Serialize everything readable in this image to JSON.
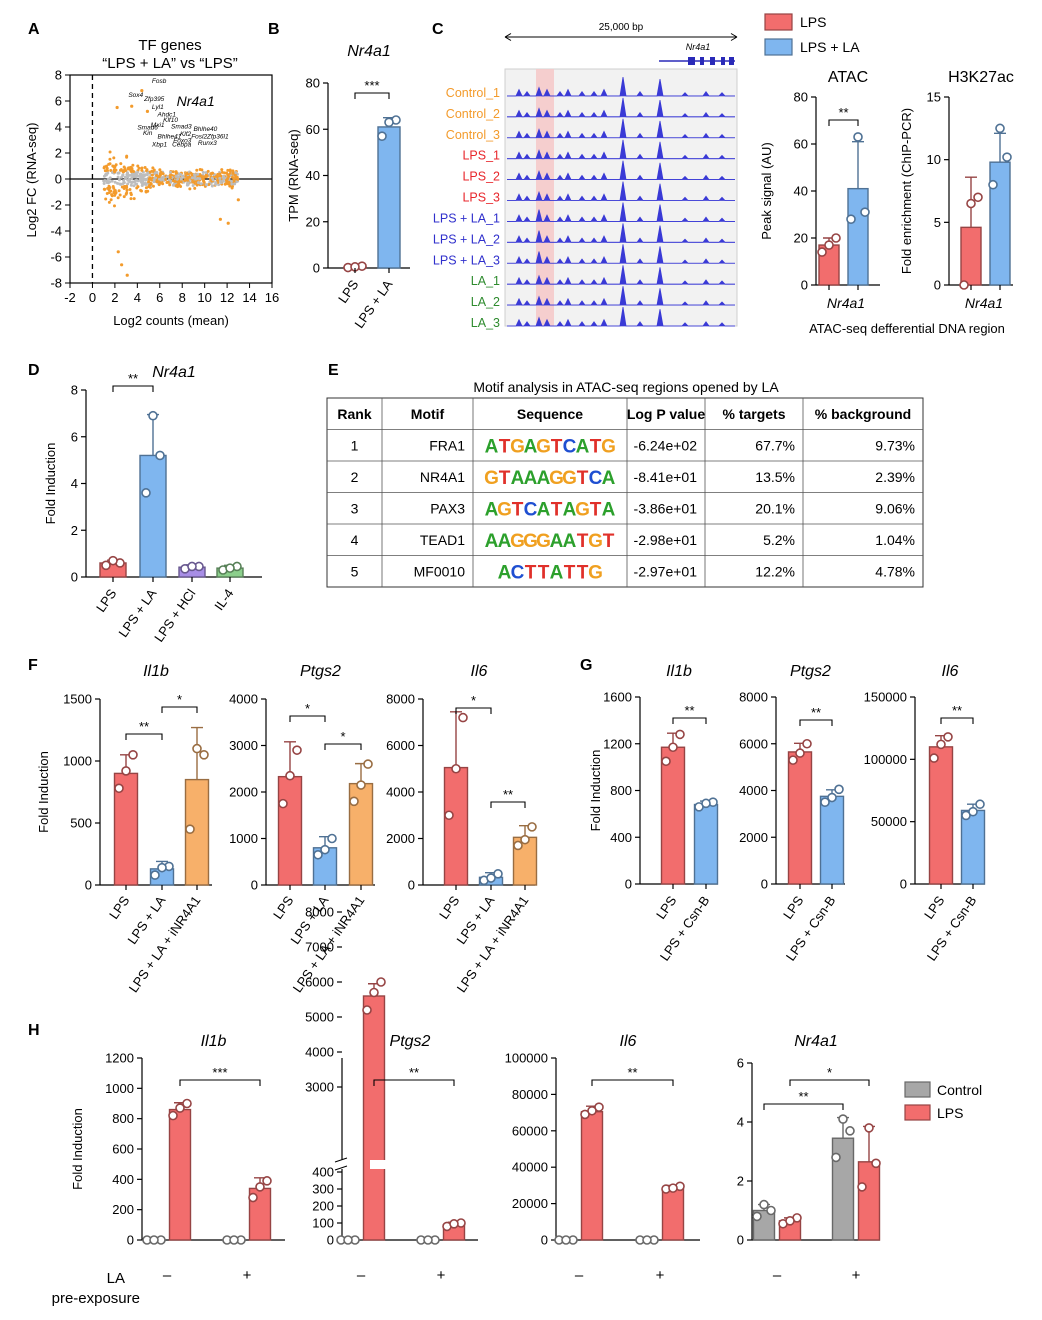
{
  "panel_letters": [
    "A",
    "B",
    "C",
    "D",
    "E",
    "F",
    "G",
    "H"
  ],
  "colors": {
    "lps": "#f26d6d",
    "la": "#7fb6ef",
    "grey": "#a7a7a7",
    "orange": "#f7b06a",
    "purple": "#a88ee6",
    "green": "#8ccf8c",
    "peak": "#3a3ad6",
    "scatter_orange": "#f39b2c",
    "scatter_grey": "#bdbdbd",
    "shade": "#f6c8c8"
  },
  "chart_data": [
    {
      "panel": "A",
      "type": "scatter",
      "title": "TF genes\n“LPS + LA” vs “LPS”",
      "xlabel": "Log2 counts (mean)",
      "ylabel": "Log2 FC (RNA-seq)",
      "xlim": [
        -2,
        16
      ],
      "ylim": [
        -8,
        8
      ],
      "xticks": [
        -2,
        0,
        2,
        4,
        6,
        8,
        10,
        12,
        14,
        16
      ],
      "yticks": [
        -8,
        -6,
        -4,
        -2,
        0,
        2,
        4,
        6,
        8
      ],
      "highlight_label": "Nr4a1",
      "gene_labels": [
        {
          "t": "Fosb",
          "x": 5.3,
          "y": 7.4
        },
        {
          "t": "Sox4",
          "x": 3.2,
          "y": 6.3
        },
        {
          "t": "Zfp395",
          "x": 4.6,
          "y": 6.0
        },
        {
          "t": "Lyl1",
          "x": 5.3,
          "y": 5.4
        },
        {
          "t": "Ahdc1",
          "x": 5.8,
          "y": 4.8
        },
        {
          "t": "Klf10",
          "x": 6.3,
          "y": 4.4
        },
        {
          "t": "Mxi1",
          "x": 5.2,
          "y": 4.0
        },
        {
          "t": "Smad6",
          "x": 4.0,
          "y": 3.8
        },
        {
          "t": "Smad3",
          "x": 7.0,
          "y": 3.9
        },
        {
          "t": "Bhlhe40",
          "x": 9.0,
          "y": 3.7
        },
        {
          "t": "Klf2",
          "x": 7.8,
          "y": 3.3
        },
        {
          "t": "Fosl2",
          "x": 8.8,
          "y": 3.1
        },
        {
          "t": "Zfp36l1",
          "x": 10.2,
          "y": 3.1
        },
        {
          "t": "Bhlhe41",
          "x": 5.8,
          "y": 3.1
        },
        {
          "t": "Foxo3",
          "x": 7.2,
          "y": 2.8
        },
        {
          "t": "Runx3",
          "x": 9.4,
          "y": 2.6
        },
        {
          "t": "Xbp1",
          "x": 5.3,
          "y": 2.5
        },
        {
          "t": "Cebpa",
          "x": 7.1,
          "y": 2.5
        },
        {
          "t": "Kin",
          "x": 4.5,
          "y": 3.4
        }
      ]
    },
    {
      "panel": "B",
      "type": "bar",
      "title": "Nr4a1",
      "ylabel": "TPM (RNA-seq)",
      "categories": [
        "LPS",
        "LPS + LA"
      ],
      "values": [
        0.5,
        61
      ],
      "errors": [
        0.5,
        4
      ],
      "points": [
        [
          0.2,
          0.8,
          0.5
        ],
        [
          57,
          64,
          63
        ]
      ],
      "ylim": [
        0,
        80
      ],
      "yticks": [
        0,
        20,
        40,
        60,
        80
      ],
      "sig": [
        {
          "a": 0,
          "b": 1,
          "label": "***"
        }
      ]
    },
    {
      "panel": "C",
      "type": "table",
      "scale_label": "25,000 bp",
      "gene": "Nr4a1",
      "tracks": [
        {
          "name": "Control_1",
          "color": "#f39b2c"
        },
        {
          "name": "Control_2",
          "color": "#f39b2c"
        },
        {
          "name": "Control_3",
          "color": "#f39b2c"
        },
        {
          "name": "LPS_1",
          "color": "#e8262b"
        },
        {
          "name": "LPS_2",
          "color": "#e8262b"
        },
        {
          "name": "LPS_3",
          "color": "#e8262b"
        },
        {
          "name": "LPS + LA_1",
          "color": "#3030cc"
        },
        {
          "name": "LPS + LA_2",
          "color": "#3030cc"
        },
        {
          "name": "LPS + LA_3",
          "color": "#3030cc"
        },
        {
          "name": "LA_1",
          "color": "#2e8b2e"
        },
        {
          "name": "LA_2",
          "color": "#2e8b2e"
        },
        {
          "name": "LA_3",
          "color": "#2e8b2e"
        }
      ]
    },
    {
      "panel": "C-legend",
      "type": "bar",
      "series": [
        {
          "name": "LPS",
          "color": "#f26d6d"
        },
        {
          "name": "LPS + LA",
          "color": "#7fb6ef"
        }
      ]
    },
    {
      "panel": "C-ATAC",
      "type": "bar",
      "title": "ATAC",
      "ylabel": "Peak signal (AU)",
      "xcat": "Nr4a1",
      "categories": [
        "LPS",
        "LPS + LA"
      ],
      "values": [
        17,
        41
      ],
      "errors": [
        3,
        20
      ],
      "points": [
        [
          14,
          20,
          17
        ],
        [
          28,
          31,
          63
        ]
      ],
      "ylim": [
        0,
        80
      ],
      "yticks": [
        0,
        20,
        40,
        60,
        80
      ],
      "sig": [
        {
          "a": 0,
          "b": 1,
          "label": "**"
        }
      ]
    },
    {
      "panel": "C-H3K27ac",
      "type": "bar",
      "title": "H3K27ac",
      "ylabel": "Fold enrichment (ChIP-PCR)",
      "xcat": "Nr4a1",
      "categories": [
        "LPS",
        "LPS + LA"
      ],
      "values": [
        4.6,
        9.8
      ],
      "errors": [
        4,
        2.3
      ],
      "points": [
        [
          0,
          7,
          6.5
        ],
        [
          8,
          10.2,
          12.5
        ]
      ],
      "ylim": [
        0,
        15
      ],
      "yticks": [
        0,
        5,
        10,
        15
      ],
      "footer": "ATAC-seq defferential DNA region"
    },
    {
      "panel": "D",
      "type": "bar",
      "title": "Nr4a1",
      "ylabel": "Fold Induction",
      "categories": [
        "LPS",
        "LPS + LA",
        "LPS + HCl",
        "IL-4"
      ],
      "values": [
        0.6,
        5.2,
        0.42,
        0.38
      ],
      "errors": [
        0.12,
        1.75,
        0.1,
        0.12
      ],
      "points": [
        [
          0.5,
          0.6,
          0.7
        ],
        [
          3.6,
          5.2,
          6.9
        ],
        [
          0.35,
          0.45,
          0.45
        ],
        [
          0.3,
          0.45,
          0.38
        ]
      ],
      "ylim": [
        0,
        8
      ],
      "yticks": [
        0,
        2,
        4,
        6,
        8
      ],
      "sig": [
        {
          "a": 0,
          "b": 1,
          "label": "**"
        }
      ]
    },
    {
      "panel": "E",
      "type": "table",
      "title": "Motif analysis in ATAC-seq regions opened by LA",
      "columns": [
        "Rank",
        "Motif",
        "Sequence",
        "Log P value",
        "% targets",
        "% background"
      ],
      "rows": [
        {
          "rank": "1",
          "motif": "FRA1",
          "seq": "ATGAGTCATG",
          "p": "-6.24e+02",
          "t": "67.7%",
          "b": "9.73%"
        },
        {
          "rank": "2",
          "motif": "NR4A1",
          "seq": "GTAAAGGTCA",
          "p": "-8.41e+01",
          "t": "13.5%",
          "b": "2.39%"
        },
        {
          "rank": "3",
          "motif": "PAX3",
          "seq": "AGTCATAGTA",
          "p": "-3.86e+01",
          "t": "20.1%",
          "b": "9.06%"
        },
        {
          "rank": "4",
          "motif": "TEAD1",
          "seq": "AAGGGAATGT",
          "p": "-2.98e+01",
          "t": "5.2%",
          "b": "1.04%"
        },
        {
          "rank": "5",
          "motif": "MF0010",
          "seq": "ACTTATTG",
          "p": "-2.97e+01",
          "t": "12.2%",
          "b": "4.78%"
        }
      ]
    },
    {
      "panel": "F1",
      "type": "bar",
      "title": "Il1b",
      "ylabel": "Fold Induction",
      "categories": [
        "LPS",
        "LPS + LA",
        "LPS + LA + iNR4A1"
      ],
      "values": [
        900,
        130,
        850
      ],
      "errors": [
        150,
        60,
        420
      ],
      "points": [
        [
          780,
          1050,
          920
        ],
        [
          80,
          150,
          140
        ],
        [
          450,
          1050,
          1100
        ]
      ],
      "ylim": [
        0,
        1500
      ],
      "yticks": [
        0,
        500,
        1000,
        1500
      ],
      "sig": [
        {
          "a": 0,
          "b": 1,
          "label": "**"
        },
        {
          "a": 1,
          "b": 2,
          "label": "*"
        }
      ]
    },
    {
      "panel": "F2",
      "type": "bar",
      "title": "Ptgs2",
      "categories": [
        "LPS",
        "LPS + LA",
        "LPS + LA + iNR4A1"
      ],
      "values": [
        2330,
        800,
        2180
      ],
      "errors": [
        750,
        240,
        430
      ],
      "points": [
        [
          1750,
          2900,
          2350
        ],
        [
          650,
          1000,
          760
        ],
        [
          1800,
          2600,
          2150
        ]
      ],
      "ylim": [
        0,
        4000
      ],
      "yticks": [
        0,
        1000,
        2000,
        3000,
        4000
      ],
      "sig": [
        {
          "a": 0,
          "b": 1,
          "label": "*"
        },
        {
          "a": 1,
          "b": 2,
          "label": "*"
        }
      ]
    },
    {
      "panel": "F3",
      "type": "bar",
      "title": "Il6",
      "categories": [
        "LPS",
        "LPS + LA",
        "LPS + LA + iNR4A1"
      ],
      "values": [
        5050,
        330,
        2050
      ],
      "errors": [
        2400,
        200,
        500
      ],
      "points": [
        [
          3000,
          7200,
          5000
        ],
        [
          200,
          480,
          300
        ],
        [
          1700,
          2500,
          1950
        ]
      ],
      "ylim": [
        0,
        8000
      ],
      "yticks": [
        0,
        2000,
        4000,
        6000,
        8000
      ],
      "sig": [
        {
          "a": 0,
          "b": 1,
          "label": "*"
        },
        {
          "a": 1,
          "b": 2,
          "label": "**"
        }
      ]
    },
    {
      "panel": "G1",
      "type": "bar",
      "title": "Il1b",
      "ylabel": "Fold Induction",
      "categories": [
        "LPS",
        "LPS + Csn-B"
      ],
      "values": [
        1170,
        680
      ],
      "errors": [
        120,
        30
      ],
      "points": [
        [
          1050,
          1280,
          1170
        ],
        [
          660,
          700,
          690
        ]
      ],
      "ylim": [
        0,
        1600
      ],
      "yticks": [
        0,
        400,
        800,
        1200,
        1600
      ],
      "sig": [
        {
          "a": 0,
          "b": 1,
          "label": "**"
        }
      ]
    },
    {
      "panel": "G2",
      "type": "bar",
      "title": "Ptgs2",
      "categories": [
        "LPS",
        "LPS + Csn-B"
      ],
      "values": [
        5650,
        3750
      ],
      "errors": [
        370,
        280
      ],
      "points": [
        [
          5300,
          6000,
          5600
        ],
        [
          3500,
          4050,
          3700
        ]
      ],
      "ylim": [
        0,
        8000
      ],
      "yticks": [
        0,
        2000,
        4000,
        6000,
        8000
      ],
      "sig": [
        {
          "a": 0,
          "b": 1,
          "label": "**"
        }
      ]
    },
    {
      "panel": "G3",
      "type": "bar",
      "title": "Il6",
      "categories": [
        "LPS",
        "LPS + Csn-B"
      ],
      "values": [
        110000,
        59000
      ],
      "errors": [
        9000,
        5000
      ],
      "points": [
        [
          101000,
          118000,
          112000
        ],
        [
          55000,
          64000,
          58000
        ]
      ],
      "ylim": [
        0,
        150000
      ],
      "yticks": [
        0,
        50000,
        100000,
        150000
      ],
      "sig": [
        {
          "a": 0,
          "b": 1,
          "label": "**"
        }
      ]
    },
    {
      "panel": "H1",
      "type": "bar",
      "title": "Il1b",
      "ylabel": "Fold Induction",
      "categories": [
        "–",
        "+"
      ],
      "category_label": "LA\npre-exposure",
      "series": [
        {
          "name": "Control",
          "values": [
            1,
            2
          ],
          "points": [
            [
              0,
              0,
              0
            ],
            [
              0,
              0,
              0
            ]
          ]
        },
        {
          "name": "LPS",
          "values": [
            860,
            340
          ],
          "errors": [
            45,
            70
          ],
          "points": [
            [
              820,
              900,
              870
            ],
            [
              280,
              390,
              350
            ]
          ]
        }
      ],
      "ylim": [
        0,
        1200
      ],
      "yticks": [
        0,
        200,
        400,
        600,
        800,
        1000,
        1200
      ],
      "sig": [
        {
          "a": "0L",
          "b": "1L",
          "label": "***"
        }
      ]
    },
    {
      "panel": "H2",
      "type": "bar",
      "title": "Ptgs2",
      "categories": [
        "–",
        "+"
      ],
      "series": [
        {
          "name": "Control",
          "values": [
            1,
            2
          ],
          "points": [
            [
              0,
              0,
              0
            ],
            [
              0,
              0,
              0
            ]
          ]
        },
        {
          "name": "LPS",
          "values": [
            5600,
            90
          ],
          "errors": [
            350,
            15
          ],
          "points": [
            [
              5200,
              6000,
              5700
            ],
            [
              80,
              100,
              95
            ]
          ]
        }
      ],
      "yticks": [
        0,
        100,
        200,
        300,
        400,
        3000,
        4000,
        5000,
        6000,
        7000,
        8000
      ],
      "axis_break": [
        400,
        3000
      ],
      "sig": [
        {
          "a": "0L",
          "b": "1L",
          "label": "**"
        }
      ]
    },
    {
      "panel": "H3",
      "type": "bar",
      "title": "Il6",
      "categories": [
        "–",
        "+"
      ],
      "series": [
        {
          "name": "Control",
          "values": [
            1,
            2
          ],
          "points": [
            [
              0,
              0,
              0
            ],
            [
              0,
              0,
              0
            ]
          ]
        },
        {
          "name": "LPS",
          "values": [
            70500,
            28500
          ],
          "errors": [
            3000,
            1500
          ],
          "points": [
            [
              69000,
              73000,
              71000
            ],
            [
              28000,
              29500,
              28500
            ]
          ]
        }
      ],
      "ylim": [
        0,
        100000
      ],
      "yticks": [
        0,
        20000,
        40000,
        60000,
        80000,
        100000
      ],
      "sig": [
        {
          "a": "0L",
          "b": "1L",
          "label": "**"
        }
      ]
    },
    {
      "panel": "H4",
      "type": "bar",
      "title": "Nr4a1",
      "categories": [
        "–",
        "+"
      ],
      "series": [
        {
          "name": "Control",
          "values": [
            1.0,
            3.45
          ],
          "errors": [
            0.2,
            0.7
          ],
          "points": [
            [
              0.8,
              1.0,
              1.2
            ],
            [
              2.8,
              3.7,
              4.1
            ]
          ]
        },
        {
          "name": "LPS",
          "values": [
            0.65,
            2.65
          ],
          "errors": [
            0.1,
            1.2
          ],
          "points": [
            [
              0.55,
              0.75,
              0.65
            ],
            [
              1.8,
              2.6,
              3.8
            ]
          ]
        }
      ],
      "ylim": [
        0,
        6
      ],
      "yticks": [
        0,
        2,
        4,
        6
      ],
      "legend": [
        {
          "name": "Control",
          "color": "#a7a7a7"
        },
        {
          "name": "LPS",
          "color": "#f26d6d"
        }
      ],
      "sig": [
        {
          "a": "0C",
          "b": "1C",
          "label": "**"
        },
        {
          "a": "0L",
          "b": "1L",
          "label": "*"
        }
      ]
    }
  ]
}
